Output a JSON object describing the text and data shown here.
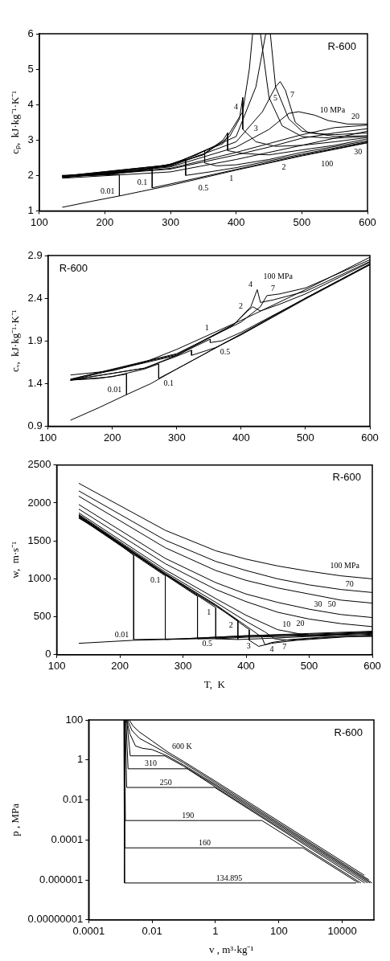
{
  "chart_data": [
    {
      "type": "line",
      "ylabel": "cₚ,  kJ·kg⁻¹·K⁻¹",
      "xlim": [
        100,
        600
      ],
      "xticks": [
        100,
        200,
        300,
        400,
        500,
        600
      ],
      "ylim": [
        1,
        6
      ],
      "yticks": [
        1,
        2,
        3,
        4,
        5,
        6
      ],
      "series": [
        {
          "color": "#000000",
          "x": [
            135,
            180,
            222
          ],
          "values": [
            1.1,
            1.27,
            1.42
          ]
        },
        {
          "color": "#000000",
          "x": [
            135,
            180,
            222,
            222,
            300,
            400,
            500,
            600
          ],
          "values": [
            2.0,
            2.0,
            2.03,
            1.42,
            1.72,
            2.15,
            2.55,
            2.92
          ]
        },
        {
          "color": "#000000",
          "x": [
            135,
            200,
            250,
            272,
            272,
            300,
            400,
            500,
            600
          ],
          "values": [
            2.0,
            2.02,
            2.12,
            2.2,
            1.65,
            1.76,
            2.17,
            2.57,
            2.93
          ]
        },
        {
          "color": "#000000",
          "x": [
            135,
            200,
            250,
            300,
            323,
            323,
            360,
            400,
            500,
            600
          ],
          "values": [
            1.99,
            2.02,
            2.13,
            2.32,
            2.45,
            2.0,
            2.1,
            2.22,
            2.6,
            2.95
          ]
        },
        {
          "color": "#000000",
          "x": [
            135,
            250,
            300,
            340,
            352,
            352,
            370,
            400,
            450,
            500,
            600
          ],
          "values": [
            1.99,
            2.13,
            2.32,
            2.58,
            2.7,
            2.35,
            2.27,
            2.3,
            2.45,
            2.65,
            2.98
          ]
        },
        {
          "color": "#000000",
          "x": [
            135,
            250,
            300,
            350,
            380,
            387,
            387,
            410,
            450,
            500,
            550,
            600
          ],
          "values": [
            1.98,
            2.12,
            2.3,
            2.6,
            3.0,
            3.2,
            2.7,
            2.62,
            2.58,
            2.72,
            2.85,
            3.03
          ]
        },
        {
          "color": "#000000",
          "x": [
            135,
            300,
            350,
            390,
            405,
            410,
            410,
            430,
            460,
            500,
            550,
            600
          ],
          "values": [
            1.98,
            2.3,
            2.58,
            3.1,
            3.6,
            4.2,
            3.3,
            2.95,
            2.82,
            2.85,
            2.95,
            3.07
          ]
        },
        {
          "color": "#000000",
          "x": [
            135,
            300,
            380,
            410,
            420,
            425,
            437,
            450,
            470,
            500,
            550,
            600
          ],
          "values": [
            1.98,
            2.3,
            2.9,
            3.8,
            5.0,
            6.0,
            6.0,
            4.2,
            3.4,
            3.1,
            3.05,
            3.1
          ]
        },
        {
          "color": "#000000",
          "x": [
            135,
            300,
            400,
            430,
            445,
            452,
            460,
            470,
            480,
            500,
            550,
            600
          ],
          "values": [
            1.97,
            2.28,
            3.1,
            4.5,
            6.0,
            6.0,
            4.5,
            4.05,
            3.6,
            3.25,
            3.1,
            3.12
          ]
        },
        {
          "color": "#000000",
          "x": [
            135,
            300,
            400,
            440,
            460,
            467,
            475,
            490,
            510,
            550,
            600
          ],
          "values": [
            1.96,
            2.26,
            2.95,
            3.8,
            4.5,
            4.65,
            4.4,
            3.5,
            3.2,
            3.15,
            3.2
          ]
        },
        {
          "color": "#000000",
          "x": [
            135,
            300,
            400,
            450,
            480,
            495,
            520,
            540,
            570,
            600
          ],
          "values": [
            1.95,
            2.24,
            2.8,
            3.3,
            3.75,
            3.8,
            3.7,
            3.55,
            3.45,
            3.45
          ]
        },
        {
          "color": "#000000",
          "x": [
            135,
            300,
            400,
            450,
            500,
            550,
            600
          ],
          "values": [
            1.95,
            2.2,
            2.65,
            2.9,
            3.15,
            3.35,
            3.42
          ]
        },
        {
          "color": "#000000",
          "x": [
            135,
            300,
            400,
            450,
            500,
            550,
            600
          ],
          "values": [
            1.94,
            2.18,
            2.58,
            2.8,
            3.05,
            3.2,
            3.32
          ]
        },
        {
          "color": "#000000",
          "x": [
            135,
            300,
            400,
            500,
            600
          ],
          "values": [
            1.92,
            2.1,
            2.45,
            2.85,
            3.25
          ]
        }
      ],
      "annotations": [
        "R-600",
        {
          "text": "0.01",
          "x": 222,
          "y": 1.42
        },
        {
          "text": "0.1",
          "x": 272,
          "y": 1.65
        },
        {
          "text": "0.5",
          "x": 323,
          "y": 2.0
        },
        {
          "text": "1",
          "x": 370,
          "y": 2.27
        },
        {
          "text": "2",
          "x": 450,
          "y": 2.58
        },
        {
          "text": "3",
          "x": 430,
          "y": 2.95
        },
        {
          "text": "4",
          "x": 410,
          "y": 3.8
        },
        {
          "text": "5",
          "x": 470,
          "y": 4.05
        },
        {
          "text": "7",
          "x": 475,
          "y": 4.4
        },
        {
          "text": "10 MPa",
          "x": 520,
          "y": 3.7
        },
        {
          "text": "20",
          "x": 600,
          "y": 3.42
        },
        {
          "text": "30",
          "x": 550,
          "y": 3.2
        },
        {
          "text": "100",
          "x": 500,
          "y": 2.85
        }
      ]
    },
    {
      "type": "line",
      "ylabel": "cᵥ,  kJ·kg⁻¹·K⁻¹",
      "xlim": [
        100,
        600
      ],
      "xticks": [
        100,
        200,
        300,
        400,
        500,
        600
      ],
      "ylim": [
        0.9,
        2.9
      ],
      "yticks": [
        0.9,
        1.4,
        1.9,
        2.4,
        2.9
      ],
      "series": [
        {
          "color": "#000000",
          "x": [
            135,
            180,
            222
          ],
          "values": [
            0.97,
            1.12,
            1.27
          ]
        },
        {
          "color": "#000000",
          "x": [
            135,
            180,
            222,
            222,
            260,
            300,
            400,
            500,
            600
          ],
          "values": [
            1.44,
            1.46,
            1.51,
            1.27,
            1.4,
            1.57,
            1.98,
            2.4,
            2.8
          ]
        },
        {
          "color": "#000000",
          "x": [
            135,
            200,
            250,
            272,
            272,
            300,
            400,
            500,
            600
          ],
          "values": [
            1.44,
            1.48,
            1.57,
            1.63,
            1.46,
            1.57,
            1.98,
            2.4,
            2.8
          ]
        },
        {
          "color": "#000000",
          "x": [
            135,
            250,
            300,
            323,
            323,
            360,
            400,
            500,
            600
          ],
          "values": [
            1.44,
            1.58,
            1.72,
            1.79,
            1.73,
            1.82,
            1.97,
            2.39,
            2.79
          ]
        },
        {
          "color": "#000000",
          "x": [
            135,
            250,
            300,
            352,
            352,
            370,
            400,
            500,
            600
          ],
          "values": [
            1.44,
            1.58,
            1.73,
            1.92,
            1.88,
            1.9,
            2.0,
            2.4,
            2.8
          ]
        },
        {
          "color": "#000000",
          "x": [
            135,
            300,
            387,
            410,
            418,
            430,
            460,
            500,
            600
          ],
          "values": [
            1.44,
            1.73,
            2.08,
            2.25,
            2.3,
            2.25,
            2.33,
            2.45,
            2.82
          ]
        },
        {
          "color": "#000000",
          "x": [
            135,
            300,
            390,
            415,
            425,
            430,
            450,
            500,
            600
          ],
          "values": [
            1.45,
            1.74,
            2.1,
            2.3,
            2.5,
            2.35,
            2.38,
            2.48,
            2.83
          ]
        },
        {
          "color": "#000000",
          "x": [
            135,
            300,
            400,
            430,
            440,
            460,
            500,
            600
          ],
          "values": [
            1.45,
            1.75,
            2.12,
            2.3,
            2.43,
            2.45,
            2.52,
            2.85
          ]
        },
        {
          "color": "#000000",
          "x": [
            135,
            200,
            250,
            300,
            400,
            500,
            600
          ],
          "values": [
            1.5,
            1.55,
            1.65,
            1.8,
            2.14,
            2.5,
            2.88
          ]
        }
      ],
      "annotations": [
        "R-600",
        {
          "text": "0.01",
          "x": 222,
          "y": 1.27
        },
        {
          "text": "0.1",
          "x": 272,
          "y": 1.46
        },
        {
          "text": "0.5",
          "x": 360,
          "y": 1.82
        },
        {
          "text": "1",
          "x": 370,
          "y": 1.9
        },
        {
          "text": "2",
          "x": 410,
          "y": 2.25
        },
        {
          "text": "4",
          "x": 425,
          "y": 2.5
        },
        {
          "text": "7",
          "x": 460,
          "y": 2.45
        },
        {
          "text": "100 MPa",
          "x": 500,
          "y": 2.5
        }
      ]
    },
    {
      "type": "line",
      "xlabel": "T,  K",
      "ylabel": "w,  m·s⁻¹",
      "xlim": [
        100,
        600
      ],
      "xticks": [
        100,
        200,
        300,
        400,
        500,
        600
      ],
      "ylim": [
        0,
        2500
      ],
      "yticks": [
        0,
        500,
        1000,
        1500,
        2000,
        2500
      ],
      "series": [
        {
          "color": "#000000",
          "x": [
            135,
            222,
            272,
            323,
            352,
            387
          ],
          "values": [
            150,
            190,
            200,
            210,
            210,
            200
          ]
        },
        {
          "color": "#000000",
          "x": [
            135,
            180,
            222,
            222,
            300,
            400,
            500,
            600
          ],
          "values": [
            1800,
            1580,
            1310,
            200,
            210,
            250,
            280,
            310
          ]
        },
        {
          "color": "#000000",
          "x": [
            135,
            222,
            272,
            272,
            400,
            500,
            600
          ],
          "values": [
            1810,
            1320,
            1040,
            200,
            250,
            270,
            300
          ]
        },
        {
          "color": "#000000",
          "x": [
            135,
            222,
            272,
            323,
            323,
            400,
            500,
            600
          ],
          "values": [
            1815,
            1330,
            1050,
            770,
            210,
            240,
            260,
            290
          ]
        },
        {
          "color": "#000000",
          "x": [
            135,
            272,
            323,
            352,
            352,
            400,
            500,
            600
          ],
          "values": [
            1820,
            1060,
            780,
            620,
            210,
            230,
            250,
            280
          ]
        },
        {
          "color": "#000000",
          "x": [
            135,
            272,
            323,
            352,
            387,
            387,
            420,
            500,
            600
          ],
          "values": [
            1830,
            1060,
            790,
            640,
            450,
            200,
            210,
            240,
            270
          ]
        },
        {
          "color": "#000000",
          "x": [
            135,
            272,
            352,
            405,
            405,
            420,
            440,
            480,
            550,
            600
          ],
          "values": [
            1835,
            1070,
            650,
            330,
            190,
            110,
            150,
            190,
            230,
            260
          ]
        },
        {
          "color": "#000000",
          "x": [
            135,
            272,
            352,
            400,
            425,
            430,
            440,
            470,
            520,
            600
          ],
          "values": [
            1840,
            1070,
            660,
            380,
            230,
            130,
            160,
            200,
            230,
            250
          ]
        },
        {
          "color": "#000000",
          "x": [
            135,
            272,
            352,
            400,
            430,
            445,
            470,
            500,
            550,
            600
          ],
          "values": [
            1850,
            1090,
            690,
            440,
            300,
            210,
            190,
            210,
            240,
            240
          ]
        },
        {
          "color": "#000000",
          "x": [
            135,
            272,
            352,
            400,
            450,
            500,
            550,
            600
          ],
          "values": [
            1870,
            1120,
            740,
            520,
            330,
            250,
            270,
            300
          ]
        },
        {
          "color": "#000000",
          "x": [
            135,
            272,
            352,
            400,
            450,
            500,
            550,
            600
          ],
          "values": [
            1920,
            1200,
            860,
            700,
            560,
            470,
            410,
            370
          ]
        },
        {
          "color": "#000000",
          "x": [
            135,
            272,
            352,
            400,
            450,
            500,
            550,
            600
          ],
          "values": [
            1980,
            1270,
            950,
            800,
            690,
            600,
            530,
            490
          ]
        },
        {
          "color": "#000000",
          "x": [
            135,
            272,
            352,
            400,
            450,
            500,
            550,
            600
          ],
          "values": [
            2090,
            1410,
            1110,
            980,
            880,
            800,
            720,
            680
          ]
        },
        {
          "color": "#000000",
          "x": [
            135,
            272,
            352,
            400,
            450,
            500,
            550,
            600
          ],
          "values": [
            2160,
            1510,
            1230,
            1110,
            1000,
            920,
            860,
            820
          ]
        },
        {
          "color": "#000000",
          "x": [
            135,
            272,
            352,
            400,
            450,
            500,
            550,
            600
          ],
          "values": [
            2260,
            1640,
            1370,
            1260,
            1170,
            1100,
            1040,
            1000
          ]
        }
      ],
      "annotations": [
        "R-600",
        {
          "text": "0.01",
          "x": 222,
          "y": 200
        },
        {
          "text": "0.1",
          "x": 272,
          "y": 1040
        },
        {
          "text": "0.5",
          "x": 323,
          "y": 210
        },
        {
          "text": "1",
          "x": 352,
          "y": 620
        },
        {
          "text": "2",
          "x": 387,
          "y": 450
        },
        {
          "text": "3",
          "x": 420,
          "y": 110
        },
        {
          "text": "4",
          "x": 430,
          "y": 130
        },
        {
          "text": "7",
          "x": 445,
          "y": 210
        },
        {
          "text": "10",
          "x": 450,
          "y": 330
        },
        {
          "text": "20",
          "x": 500,
          "y": 470
        },
        {
          "text": "30",
          "x": 500,
          "y": 600
        },
        {
          "text": "50",
          "x": 550,
          "y": 720
        },
        {
          "text": "70",
          "x": 550,
          "y": 860
        },
        {
          "text": "100 MPa",
          "x": 600,
          "y": 1000
        }
      ]
    },
    {
      "type": "line",
      "log": "xy",
      "xlabel": "v , m³·kg⁻¹",
      "ylabel": "p , MPa",
      "xlim": [
        0.0001,
        100000
      ],
      "xticks": [
        0.0001,
        0.01,
        1,
        100,
        10000
      ],
      "ylim": [
        1e-08,
        100
      ],
      "yticks": [
        {
          "value": 1e-08,
          "label": "0.00000001"
        },
        {
          "value": 1e-06,
          "label": "0.000001"
        },
        0.0001,
        0.01,
        1,
        100
      ],
      "series": [
        {
          "color": "#000000",
          "x": [
            0.00129,
            0.00135,
            10,
            27557
          ],
          "values": [
            100,
            7e-07,
            7e-07,
            7e-07
          ]
        },
        {
          "color": "#000000",
          "x": [
            0.00132,
            0.00139,
            1,
            572,
            32686
          ],
          "values": [
            100,
            4e-05,
            4e-05,
            4e-05,
            7e-07
          ]
        },
        {
          "color": "#000000",
          "x": [
            0.00136,
            0.00144,
            0.3,
            29.2,
            38814
          ],
          "values": [
            100,
            0.00093,
            0.00093,
            0.00093,
            7e-07
          ]
        },
        {
          "color": "#000000",
          "x": [
            0.00143,
            0.00158,
            0.06,
            0.95,
            51071
          ],
          "values": [
            100,
            0.042,
            0.042,
            0.042,
            7e-07
          ]
        },
        {
          "color": "#000000",
          "x": [
            0.0015,
            0.00175,
            0.02,
            0.13,
            1,
            63328
          ],
          "values": [
            100,
            0.36,
            0.36,
            0.36,
            0.044,
            7e-07
          ]
        },
        {
          "color": "#000000",
          "x": [
            0.00158,
            0.00205,
            0.025,
            0.1,
            1,
            75585
          ],
          "values": [
            100,
            1.6,
            1.6,
            0.48,
            0.052,
            7e-07
          ]
        },
        {
          "color": "#000000",
          "x": [
            0.0016,
            0.002,
            0.003,
            0.005,
            0.01,
            0.03,
            0.1,
            1,
            10,
            1000,
            86821
          ],
          "values": [
            100,
            20,
            5,
            3.8,
            3.3,
            1.6,
            0.55,
            0.06,
            0.0061,
            6.1e-05,
            7e-07
          ]
        },
        {
          "color": "#000000",
          "x": [
            0.0017,
            0.0023,
            0.004,
            0.01,
            0.03,
            0.1,
            1,
            70000
          ],
          "values": [
            100,
            30,
            12,
            5.5,
            2.1,
            0.7,
            0.072,
            1e-06
          ]
        },
        {
          "color": "#000000",
          "x": [
            0.0019,
            0.0025,
            0.004,
            0.01,
            0.03,
            0.1,
            1,
            50000
          ],
          "values": [
            100,
            50,
            25,
            9,
            2.6,
            0.83,
            0.086,
            1.7e-06
          ]
        }
      ],
      "annotations": [
        "R-600",
        {
          "text": "600 K",
          "x": 0.03,
          "y": 2.6
        },
        {
          "text": "310",
          "x": 0.02,
          "y": 0.36
        },
        {
          "text": "250",
          "x": 0.06,
          "y": 0.042
        },
        {
          "text": "190",
          "x": 0.3,
          "y": 0.00093
        },
        {
          "text": "160",
          "x": 1,
          "y": 4e-05
        },
        {
          "text": "134.895",
          "x": 10,
          "y": 7e-07
        }
      ]
    }
  ]
}
